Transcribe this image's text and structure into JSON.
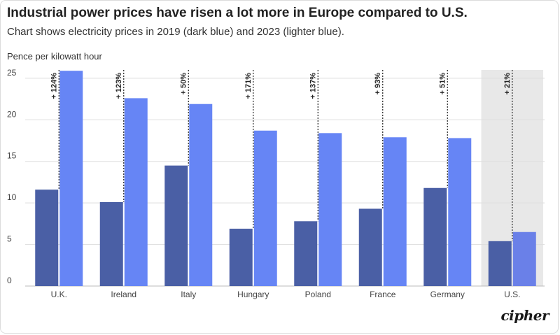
{
  "header": {
    "title": "Industrial power prices have risen a lot more in Europe compared to U.S.",
    "subtitle": "Chart shows electricity prices in 2019 (dark blue) and 2023 (lighter blue)."
  },
  "brand": {
    "logo_text": "cipher"
  },
  "colors": {
    "bar_2019": "#4a5fa5",
    "bar_2023": "#6685f5",
    "bar_2023_highlight": "#6a80e8",
    "highlight_bg": "#e8e8e8",
    "grid": "#dddddd"
  },
  "chart_data": {
    "type": "bar",
    "title": "Industrial power prices have risen a lot more in Europe compared to U.S.",
    "subtitle": "Chart shows electricity prices in 2019 (dark blue) and 2023 (lighter blue).",
    "ylabel": "Pence per kilowatt hour",
    "xlabel": "",
    "ylim": [
      0,
      26
    ],
    "yticks": [
      0,
      5,
      10,
      15,
      20,
      25
    ],
    "grid": true,
    "categories": [
      "U.K.",
      "Ireland",
      "Italy",
      "Hungary",
      "Poland",
      "France",
      "Germany",
      "U.S."
    ],
    "series": [
      {
        "values": [
          11.6,
          10.1,
          14.5,
          6.9,
          7.8,
          9.3,
          11.8,
          5.4
        ]
      },
      {
        "values": [
          25.9,
          22.6,
          21.9,
          18.7,
          18.4,
          17.9,
          17.8,
          6.5
        ]
      }
    ],
    "annotations": [
      "+ 124%",
      "+ 123%",
      "+ 50%",
      "+ 171%",
      "+ 137%",
      "+ 93%",
      "+ 51%",
      "+ 21%"
    ],
    "highlighted_category": "U.S."
  }
}
